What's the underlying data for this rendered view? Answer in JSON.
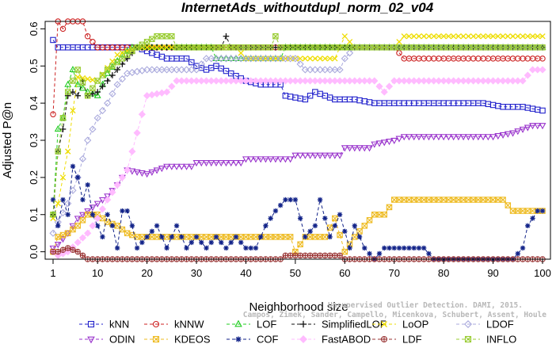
{
  "chart_data": {
    "type": "line",
    "title": "InternetAds_withoutdupl_norm_02_v04",
    "xlabel": "Neighborhood size",
    "ylabel": "Adjusted P@n",
    "xlim": [
      1,
      100
    ],
    "ylim": [
      -0.02,
      0.62
    ],
    "xticks": [
      1,
      10,
      20,
      30,
      40,
      50,
      60,
      70,
      80,
      90,
      100
    ],
    "yticks": [
      0.0,
      0.1,
      0.2,
      0.3,
      0.4,
      0.5,
      0.6
    ],
    "ytick_labels": [
      "0.0",
      "0.1",
      "0.2",
      "0.3",
      "0.4",
      "0.5",
      "0.6"
    ],
    "grid": false,
    "legend_position": "bottom",
    "watermark_lines": [
      "Unsupervised Outlier Detection. DAMI, 2015.",
      "Campos, Zimek, Sander, Campello, Micenkova, Schubert, Assent, Houle"
    ],
    "series": [
      {
        "name": "kNN",
        "color": "#2222cc",
        "marker": "square",
        "points": [
          [
            1,
            0.57
          ],
          [
            2,
            0.55
          ],
          [
            18,
            0.55
          ],
          [
            20,
            0.54
          ],
          [
            22,
            0.53
          ],
          [
            24,
            0.52
          ],
          [
            28,
            0.52
          ],
          [
            30,
            0.5
          ],
          [
            32,
            0.49
          ],
          [
            34,
            0.5
          ],
          [
            37,
            0.48
          ],
          [
            40,
            0.46
          ],
          [
            43,
            0.45
          ],
          [
            48,
            0.42
          ],
          [
            52,
            0.41
          ],
          [
            54,
            0.43
          ],
          [
            58,
            0.41
          ],
          [
            62,
            0.41
          ],
          [
            66,
            0.4
          ],
          [
            70,
            0.4
          ],
          [
            88,
            0.4
          ],
          [
            92,
            0.39
          ],
          [
            96,
            0.39
          ],
          [
            100,
            0.38
          ]
        ]
      },
      {
        "name": "kNNW",
        "color": "#cc2222",
        "marker": "circle",
        "points": [
          [
            1,
            0.37
          ],
          [
            2,
            0.62
          ],
          [
            3,
            0.6
          ],
          [
            4,
            0.62
          ],
          [
            7,
            0.62
          ],
          [
            8,
            0.58
          ],
          [
            10,
            0.55
          ],
          [
            70,
            0.55
          ],
          [
            72,
            0.52
          ],
          [
            100,
            0.52
          ]
        ]
      },
      {
        "name": "LOF",
        "color": "#22cc22",
        "marker": "triangle-up",
        "points": [
          [
            1,
            0.1
          ],
          [
            2,
            0.33
          ],
          [
            3,
            0.36
          ],
          [
            4,
            0.45
          ],
          [
            5,
            0.49
          ],
          [
            6,
            0.45
          ],
          [
            8,
            0.43
          ],
          [
            10,
            0.42
          ],
          [
            12,
            0.48
          ],
          [
            15,
            0.53
          ],
          [
            17,
            0.55
          ],
          [
            33,
            0.55
          ],
          [
            34,
            0.52
          ],
          [
            47,
            0.52
          ],
          [
            48,
            0.55
          ],
          [
            100,
            0.55
          ]
        ]
      },
      {
        "name": "SimplifiedLOF",
        "color": "#111111",
        "marker": "plus",
        "points": [
          [
            1,
            0.1
          ],
          [
            2,
            0.27
          ],
          [
            3,
            0.33
          ],
          [
            4,
            0.42
          ],
          [
            5,
            0.43
          ],
          [
            6,
            0.42
          ],
          [
            7,
            0.46
          ],
          [
            8,
            0.42
          ],
          [
            10,
            0.43
          ],
          [
            14,
            0.49
          ],
          [
            16,
            0.52
          ],
          [
            18,
            0.55
          ],
          [
            35,
            0.55
          ],
          [
            36,
            0.58
          ],
          [
            37,
            0.55
          ],
          [
            100,
            0.55
          ]
        ]
      },
      {
        "name": "LoOP",
        "color": "#eedd00",
        "marker": "x",
        "points": [
          [
            1,
            0.09
          ],
          [
            2,
            0.13
          ],
          [
            3,
            0.2
          ],
          [
            4,
            0.27
          ],
          [
            5,
            0.38
          ],
          [
            6,
            0.47
          ],
          [
            10,
            0.46
          ],
          [
            14,
            0.53
          ],
          [
            18,
            0.55
          ],
          [
            38,
            0.55
          ],
          [
            40,
            0.52
          ],
          [
            58,
            0.52
          ],
          [
            60,
            0.58
          ],
          [
            62,
            0.55
          ],
          [
            70,
            0.55
          ],
          [
            72,
            0.58
          ],
          [
            100,
            0.58
          ]
        ]
      },
      {
        "name": "LDOF",
        "color": "#aaaadd",
        "marker": "diamond",
        "points": [
          [
            1,
            0.05
          ],
          [
            2,
            0.08
          ],
          [
            4,
            0.13
          ],
          [
            6,
            0.2
          ],
          [
            8,
            0.3
          ],
          [
            10,
            0.36
          ],
          [
            12,
            0.4
          ],
          [
            14,
            0.45
          ],
          [
            16,
            0.48
          ],
          [
            20,
            0.49
          ],
          [
            30,
            0.49
          ],
          [
            32,
            0.52
          ],
          [
            50,
            0.52
          ],
          [
            52,
            0.49
          ],
          [
            60,
            0.52
          ],
          [
            62,
            0.55
          ],
          [
            100,
            0.55
          ]
        ]
      },
      {
        "name": "ODIN",
        "color": "#9933cc",
        "marker": "triangle-down",
        "points": [
          [
            1,
            0.01
          ],
          [
            2,
            0.02
          ],
          [
            4,
            0.05
          ],
          [
            6,
            0.09
          ],
          [
            8,
            0.11
          ],
          [
            10,
            0.13
          ],
          [
            12,
            0.15
          ],
          [
            14,
            0.18
          ],
          [
            16,
            0.22
          ],
          [
            20,
            0.21
          ],
          [
            24,
            0.23
          ],
          [
            30,
            0.24
          ],
          [
            40,
            0.25
          ],
          [
            50,
            0.26
          ],
          [
            60,
            0.28
          ],
          [
            66,
            0.29
          ],
          [
            70,
            0.3
          ],
          [
            72,
            0.31
          ],
          [
            90,
            0.31
          ],
          [
            94,
            0.32
          ],
          [
            98,
            0.34
          ],
          [
            100,
            0.34
          ]
        ]
      },
      {
        "name": "KDEOS",
        "color": "#eebb22",
        "marker": "square-x",
        "points": [
          [
            1,
            0.0
          ],
          [
            2,
            0.04
          ],
          [
            4,
            0.05
          ],
          [
            6,
            0.07
          ],
          [
            8,
            0.1
          ],
          [
            10,
            0.1
          ],
          [
            12,
            0.08
          ],
          [
            14,
            0.07
          ],
          [
            16,
            0.05
          ],
          [
            18,
            0.04
          ],
          [
            36,
            0.04
          ],
          [
            40,
            0.04
          ],
          [
            50,
            0.0
          ],
          [
            52,
            0.04
          ],
          [
            56,
            0.04
          ],
          [
            58,
            0.09
          ],
          [
            60,
            0.0
          ],
          [
            62,
            0.04
          ],
          [
            64,
            0.07
          ],
          [
            66,
            0.1
          ],
          [
            68,
            0.1
          ],
          [
            70,
            0.14
          ],
          [
            92,
            0.14
          ],
          [
            94,
            0.11
          ],
          [
            100,
            0.11
          ]
        ]
      },
      {
        "name": "COF",
        "color": "#112288",
        "marker": "asterisk",
        "points": [
          [
            1,
            0.14
          ],
          [
            2,
            0.07
          ],
          [
            3,
            0.14
          ],
          [
            4,
            0.1
          ],
          [
            5,
            0.23
          ],
          [
            6,
            0.2
          ],
          [
            7,
            0.14
          ],
          [
            8,
            0.18
          ],
          [
            9,
            0.1
          ],
          [
            10,
            0.07
          ],
          [
            11,
            0.04
          ],
          [
            12,
            0.1
          ],
          [
            13,
            0.07
          ],
          [
            14,
            0.01
          ],
          [
            15,
            0.11
          ],
          [
            16,
            0.11
          ],
          [
            17,
            0.07
          ],
          [
            18,
            0.01
          ],
          [
            20,
            0.04
          ],
          [
            22,
            0.07
          ],
          [
            24,
            0.01
          ],
          [
            26,
            0.07
          ],
          [
            28,
            0.01
          ],
          [
            30,
            0.04
          ],
          [
            32,
            0.01
          ],
          [
            34,
            0.04
          ],
          [
            36,
            0.01
          ],
          [
            38,
            0.04
          ],
          [
            40,
            0.01
          ],
          [
            42,
            0.01
          ],
          [
            44,
            0.07
          ],
          [
            46,
            0.11
          ],
          [
            48,
            0.14
          ],
          [
            50,
            0.14
          ],
          [
            52,
            0.04
          ],
          [
            54,
            0.07
          ],
          [
            55,
            0.14
          ],
          [
            57,
            0.04
          ],
          [
            59,
            0.1
          ],
          [
            61,
            0.01
          ],
          [
            62,
            0.07
          ],
          [
            64,
            0.01
          ],
          [
            66,
            -0.02
          ],
          [
            68,
            0.01
          ],
          [
            76,
            0.01
          ],
          [
            78,
            -0.02
          ],
          [
            94,
            -0.02
          ],
          [
            96,
            0.01
          ],
          [
            97,
            0.07
          ],
          [
            99,
            0.11
          ],
          [
            100,
            0.11
          ]
        ]
      },
      {
        "name": "FastABOD",
        "color": "#ffbbff",
        "marker": "diamond-filled",
        "points": [
          [
            1,
            0.0
          ],
          [
            2,
            -0.01
          ],
          [
            4,
            0.0
          ],
          [
            8,
            0.05
          ],
          [
            10,
            0.09
          ],
          [
            12,
            0.14
          ],
          [
            14,
            0.18
          ],
          [
            16,
            0.22
          ],
          [
            18,
            0.32
          ],
          [
            20,
            0.42
          ],
          [
            24,
            0.43
          ],
          [
            26,
            0.46
          ],
          [
            66,
            0.46
          ],
          [
            68,
            0.43
          ],
          [
            70,
            0.46
          ],
          [
            96,
            0.46
          ],
          [
            98,
            0.49
          ],
          [
            100,
            0.49
          ]
        ]
      },
      {
        "name": "LDF",
        "color": "#993333",
        "marker": "circle-plus",
        "points": [
          [
            1,
            0.0
          ],
          [
            2,
            0.0
          ],
          [
            4,
            0.01
          ],
          [
            6,
            0.0
          ],
          [
            8,
            -0.02
          ],
          [
            10,
            -0.02
          ],
          [
            14,
            -0.02
          ],
          [
            20,
            -0.02
          ],
          [
            30,
            -0.02
          ],
          [
            40,
            -0.02
          ],
          [
            48,
            -0.01
          ],
          [
            50,
            -0.01
          ],
          [
            60,
            -0.02
          ],
          [
            100,
            -0.02
          ]
        ]
      },
      {
        "name": "INFLO",
        "color": "#99cc33",
        "marker": "square-x",
        "points": [
          [
            1,
            0.1
          ],
          [
            2,
            0.27
          ],
          [
            3,
            0.36
          ],
          [
            4,
            0.43
          ],
          [
            6,
            0.49
          ],
          [
            8,
            0.42
          ],
          [
            10,
            0.46
          ],
          [
            12,
            0.49
          ],
          [
            16,
            0.53
          ],
          [
            18,
            0.55
          ],
          [
            22,
            0.58
          ],
          [
            25,
            0.58
          ],
          [
            26,
            0.55
          ],
          [
            45,
            0.55
          ],
          [
            46,
            0.58
          ],
          [
            47,
            0.55
          ],
          [
            100,
            0.55
          ]
        ]
      }
    ]
  }
}
